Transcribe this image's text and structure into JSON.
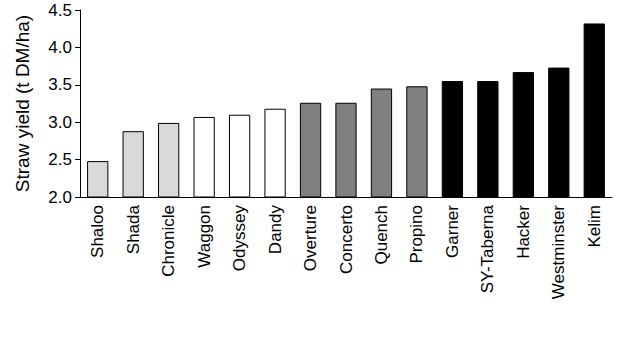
{
  "chart_data": {
    "type": "bar",
    "y_label": "Straw yield (t DM/ha)",
    "categories": [
      "Shaloo",
      "Shada",
      "Chronicle",
      "Waggon",
      "Odyssey",
      "Dandy",
      "Overture",
      "Concerto",
      "Quench",
      "Propino",
      "Garner",
      "SY-Taberna",
      "Hacker",
      "Westminster",
      "Kelim"
    ],
    "values": [
      2.48,
      2.88,
      2.99,
      3.07,
      3.1,
      3.18,
      3.26,
      3.26,
      3.45,
      3.48,
      3.55,
      3.55,
      3.67,
      3.73,
      4.32
    ],
    "colors": [
      "#d9d9d9",
      "#d9d9d9",
      "#d9d9d9",
      "#ffffff",
      "#ffffff",
      "#ffffff",
      "#808080",
      "#808080",
      "#808080",
      "#808080",
      "#000000",
      "#000000",
      "#000000",
      "#000000",
      "#000000"
    ],
    "ylim": [
      2.0,
      4.5
    ],
    "yticks": [
      {
        "value": 2.0,
        "label": "2.0"
      },
      {
        "value": 2.5,
        "label": "2.5"
      },
      {
        "value": 3.0,
        "label": "3.0"
      },
      {
        "value": 3.5,
        "label": "3.5"
      },
      {
        "value": 4.0,
        "label": "4.0"
      },
      {
        "value": 4.5,
        "label": "4.5"
      }
    ],
    "grid": false
  }
}
